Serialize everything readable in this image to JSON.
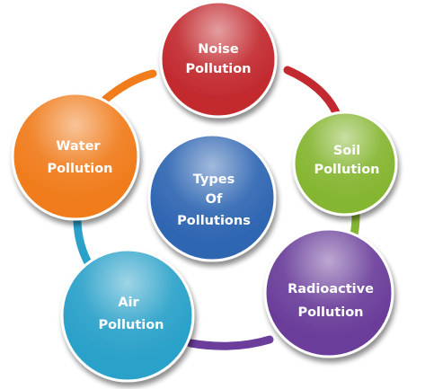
{
  "diagram": {
    "center": {
      "lines": [
        "Types",
        "Of",
        "Pollutions"
      ],
      "color": "#2f66b2"
    },
    "nodes": [
      {
        "id": "noise",
        "lines": [
          "Noise",
          "Pollution"
        ],
        "color": "#c22a2f"
      },
      {
        "id": "soil",
        "lines": [
          "Soil",
          "Pollution"
        ],
        "color": "#85b631"
      },
      {
        "id": "radioactive",
        "lines": [
          "Radioactive",
          "Pollution"
        ],
        "color": "#6a3e9a"
      },
      {
        "id": "air",
        "lines": [
          "Air",
          "Pollution"
        ],
        "color": "#2aa1c9"
      },
      {
        "id": "water",
        "lines": [
          "Water",
          "Pollution"
        ],
        "color": "#f07c1c"
      }
    ],
    "ring_colors": [
      "#c22a2f",
      "#85b631",
      "#6a3e9a",
      "#2aa1c9",
      "#f07c1c"
    ]
  }
}
